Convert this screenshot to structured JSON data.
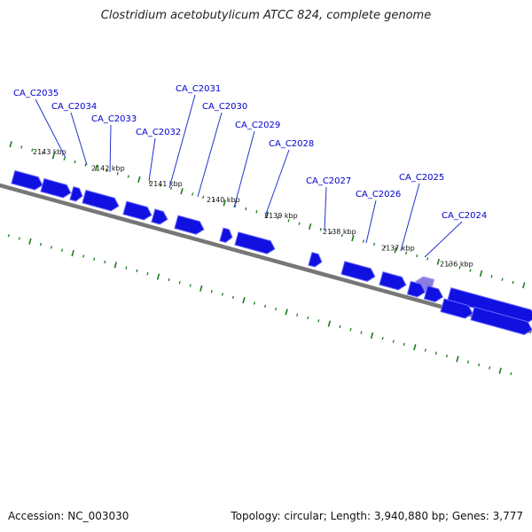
{
  "title": "Clostridium acetobutylicum ATCC 824, complete genome",
  "footer": {
    "accession": "Accession: NC_003030",
    "stats": "Topology: circular; Length: 3,940,880 bp; Genes: 3,777"
  },
  "colors": {
    "gene": "#1010e0",
    "gene_top": "#6a6aff",
    "gene_highlight": "#8c7ce0",
    "label": "#0000cc",
    "leader": "#2233cc",
    "backbone": "#777777",
    "tick": "#1f7a1f"
  },
  "scale_ticks": [
    {
      "kbp": 2143,
      "label": "2143 kbp"
    },
    {
      "kbp": 2142,
      "label": "2142 kbp"
    },
    {
      "kbp": 2141,
      "label": "2141 kbp"
    },
    {
      "kbp": 2140,
      "label": "2140 kbp"
    },
    {
      "kbp": 2139,
      "label": "2139 kbp"
    },
    {
      "kbp": 2138,
      "label": "2138 kbp"
    },
    {
      "kbp": 2137,
      "label": "2137 kbp"
    },
    {
      "kbp": 2136,
      "label": "2136 kbp"
    }
  ],
  "gene_labels": [
    "CA_C2035",
    "CA_C2034",
    "CA_C2033",
    "CA_C2032",
    "CA_C2031",
    "CA_C2030",
    "CA_C2029",
    "CA_C2028",
    "CA_C2027",
    "CA_C2026",
    "CA_C2025",
    "CA_C2024"
  ]
}
